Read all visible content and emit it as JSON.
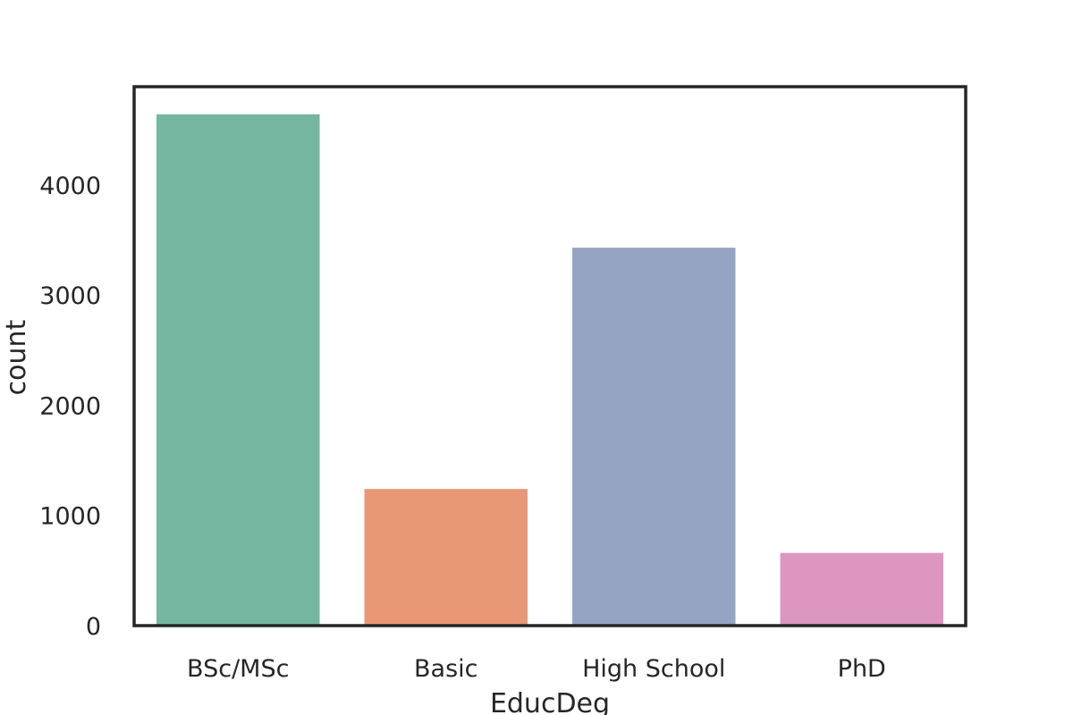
{
  "chart_data": {
    "type": "bar",
    "title": "",
    "xlabel": "EducDeg",
    "ylabel": "count",
    "categories": [
      "BSc/MSc",
      "Basic",
      "High School",
      "PhD"
    ],
    "values": [
      4640,
      1240,
      3430,
      660
    ],
    "colors": [
      "#74b6a0",
      "#e99876",
      "#95a4c3",
      "#dc96c0"
    ],
    "ylim": [
      0,
      4891
    ],
    "yticks": [
      0,
      1000,
      2000,
      3000,
      4000
    ],
    "ytick_labels": [
      "0",
      "1000",
      "2000",
      "3000",
      "4000"
    ],
    "grid": false,
    "legend": false
  }
}
